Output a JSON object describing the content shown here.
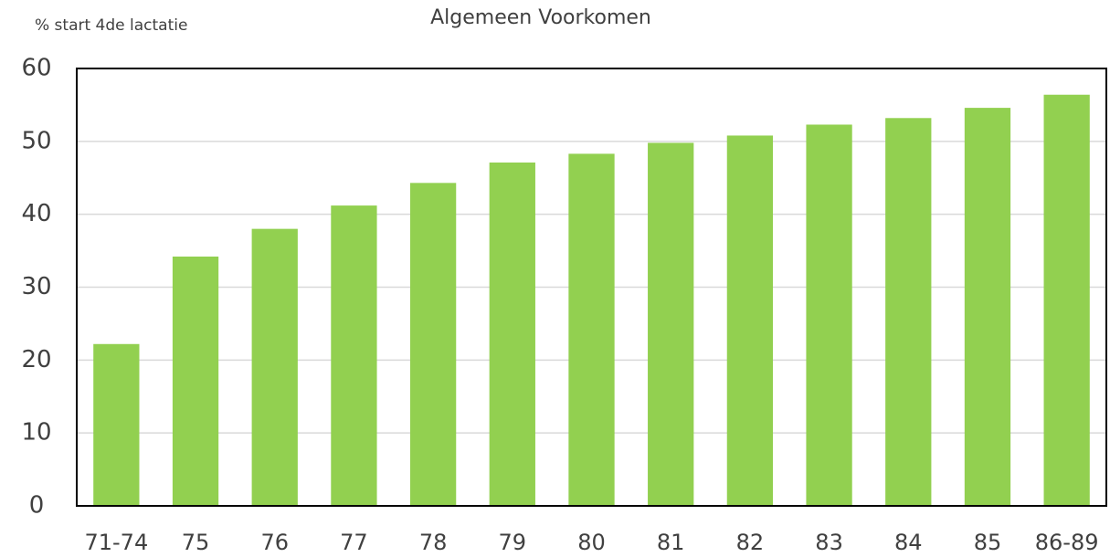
{
  "chart_data": {
    "type": "bar",
    "title": "Algemeen Voorkomen",
    "y_label": "% start 4de lactatie",
    "categories": [
      "71-74",
      "75",
      "76",
      "77",
      "78",
      "79",
      "80",
      "81",
      "82",
      "83",
      "84",
      "85",
      "86-89"
    ],
    "values": [
      22.2,
      34.2,
      38,
      41.2,
      44.3,
      47.1,
      48.3,
      49.8,
      50.8,
      52.3,
      53.2,
      54.6,
      56.4
    ],
    "color": "#92d050",
    "ylim": [
      0,
      60
    ],
    "yticks": [
      0,
      10,
      20,
      30,
      40,
      50,
      60
    ],
    "grid": true
  }
}
